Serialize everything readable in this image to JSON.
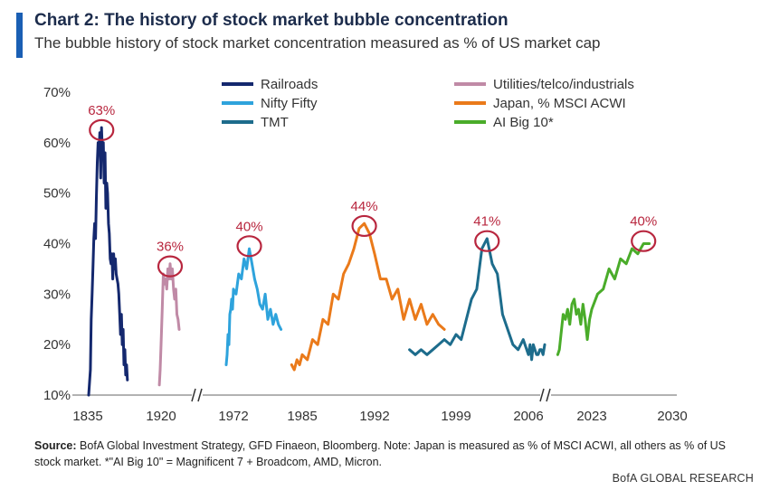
{
  "header": {
    "title": "Chart 2: The history of stock market bubble concentration",
    "subtitle": "The bubble history of stock market concentration measured as % of US market cap"
  },
  "footer": {
    "source_label": "Source:",
    "source_text": "BofA Global Investment Strategy, GFD Finaeon, Bloomberg. Note: Japan is measured as % of MSCI ACWI, all others as % of US stock market. *\"AI Big 10\" = Magnificent 7 + Broadcom, AMD, Micron.",
    "brand": "BofA GLOBAL RESEARCH"
  },
  "chart_data": {
    "type": "line",
    "title": "Chart 2: The history of stock market bubble concentration",
    "subtitle": "The bubble history of stock market concentration measured as % of US market cap",
    "ylabel": "",
    "xlabel": "",
    "ylim": [
      10,
      70
    ],
    "yticks": [
      "10%",
      "20%",
      "30%",
      "40%",
      "50%",
      "60%",
      "70%"
    ],
    "xticks": [
      "1835",
      "1920",
      "1972",
      "1985",
      "1992",
      "1999",
      "2006",
      "2023",
      "2030"
    ],
    "axis_breaks": 2,
    "grid": false,
    "legend_position": "top",
    "colors": {
      "Railroads": "#14286e",
      "Utilities/telco/industrials": "#c08aa6",
      "Nifty Fifty": "#2ea3dc",
      "Japan, % MSCI ACWI": "#ea7a1a",
      "TMT": "#1d6c8c",
      "AI Big 10*": "#4aac2a",
      "circle": "#b8263e"
    },
    "series": [
      {
        "name": "Railroads",
        "x": [
          1836,
          1838,
          1839,
          1840,
          1841,
          1842,
          1843,
          1844,
          1845,
          1846,
          1847,
          1848,
          1849,
          1850,
          1851,
          1852,
          1853,
          1854,
          1855,
          1856,
          1857,
          1858,
          1859,
          1860,
          1861,
          1862,
          1863,
          1864,
          1865,
          1866,
          1867,
          1868,
          1869,
          1870,
          1871,
          1872,
          1873,
          1874,
          1875,
          1876,
          1877,
          1878,
          1879,
          1880,
          1881
        ],
        "values": [
          10,
          15,
          25,
          30,
          35,
          41,
          44,
          41,
          49,
          56,
          60,
          58,
          62,
          53,
          63,
          58,
          60,
          52,
          58,
          47,
          52,
          50,
          44,
          42,
          37,
          36,
          38,
          33,
          38,
          35,
          37,
          34,
          33,
          32,
          30,
          26,
          22,
          26,
          20,
          23,
          16,
          19,
          14,
          16,
          13
        ]
      },
      {
        "name": "Utilities/telco/industrials",
        "x": [
          1918,
          1919,
          1920,
          1921,
          1922,
          1923,
          1924,
          1925,
          1926,
          1927,
          1928,
          1929,
          1930,
          1931,
          1932,
          1933,
          1934,
          1935,
          1936
        ],
        "values": [
          12,
          15,
          20,
          27,
          34,
          32,
          33,
          31,
          35,
          33,
          36,
          33,
          35,
          31,
          29,
          31,
          26,
          25,
          23
        ]
      },
      {
        "name": "Nifty Fifty",
        "x": [
          1968,
          1968.5,
          1969,
          1969.5,
          1970,
          1970.5,
          1971,
          1971.5,
          1972,
          1972.5,
          1973,
          1973.5,
          1974,
          1974.5,
          1975,
          1975.5,
          1976,
          1976.5,
          1977,
          1977.5,
          1978,
          1978.5,
          1979,
          1979.5,
          1980,
          1980.5,
          1981
        ],
        "values": [
          16,
          18,
          22,
          20,
          26,
          27,
          29,
          27,
          31,
          30,
          34,
          33,
          37,
          35,
          39,
          36,
          33,
          31,
          28,
          27,
          30,
          25,
          27,
          24,
          26,
          24,
          23
        ]
      },
      {
        "name": "Japan, % MSCI ACWI",
        "x": [
          1983,
          1983.5,
          1984,
          1984.5,
          1985,
          1985.5,
          1986,
          1986.5,
          1987,
          1987.5,
          1988,
          1988.5,
          1989,
          1989.5,
          1990,
          1990.5,
          1991,
          1991.5,
          1992,
          1992.5,
          1993,
          1993.5,
          1994,
          1994.5,
          1995,
          1995.5,
          1996,
          1996.5,
          1997,
          1997.5,
          1998
        ],
        "values": [
          16,
          15,
          17,
          16,
          18,
          17,
          21,
          20,
          25,
          24,
          30,
          29,
          34,
          36,
          39,
          43,
          44,
          42,
          38,
          33,
          33,
          29,
          31,
          25,
          29,
          25,
          28,
          24,
          26,
          24,
          23
        ]
      },
      {
        "name": "TMT",
        "x": [
          1995,
          1995.5,
          1996,
          1996.5,
          1997,
          1997.5,
          1998,
          1998.5,
          1999,
          1999.5,
          2000,
          2000.5,
          2001,
          2001.5,
          2002,
          2002.5,
          2003,
          2003.5,
          2004,
          2004.5,
          2005,
          2005.5,
          2006,
          2006.5,
          2007,
          2007.5,
          2008,
          2008.5,
          2009,
          2009.5,
          2010,
          2010.5,
          2011
        ],
        "values": [
          19,
          18,
          19,
          18,
          19,
          20,
          21,
          20,
          22,
          21,
          25,
          29,
          31,
          39,
          41,
          36,
          34,
          26,
          23,
          20,
          19,
          21,
          18,
          20,
          17,
          20,
          19,
          18,
          18,
          19,
          19,
          18,
          20
        ]
      },
      {
        "name": "AI Big 10*",
        "x": [
          2015,
          2015.5,
          2016,
          2016.5,
          2017,
          2017.5,
          2018,
          2018.5,
          2019,
          2019.5,
          2020,
          2020.5,
          2021,
          2021.5,
          2022,
          2022.5,
          2023,
          2023.5,
          2024,
          2024.5,
          2025,
          2025.5,
          2026,
          2026.5,
          2027,
          2027.5,
          2028
        ],
        "values": [
          18,
          19,
          22,
          26,
          25,
          27,
          24,
          28,
          29,
          26,
          27,
          24,
          28,
          25,
          21,
          25,
          27,
          30,
          31,
          35,
          33,
          37,
          36,
          39,
          38,
          40,
          40
        ]
      }
    ],
    "annotations": [
      {
        "label": "63%",
        "series": "Railroads",
        "x": 1851,
        "y": 62.5
      },
      {
        "label": "36%",
        "series": "Utilities/telco/industrials",
        "x": 1928,
        "y": 35.5
      },
      {
        "label": "40%",
        "series": "Nifty Fifty",
        "x": 1975,
        "y": 39.5
      },
      {
        "label": "44%",
        "series": "Japan, % MSCI ACWI",
        "x": 1991,
        "y": 43.5
      },
      {
        "label": "41%",
        "series": "TMT",
        "x": 2002,
        "y": 40.5
      },
      {
        "label": "40%",
        "series": "AI Big 10*",
        "x": 2027.5,
        "y": 40.5
      }
    ]
  }
}
